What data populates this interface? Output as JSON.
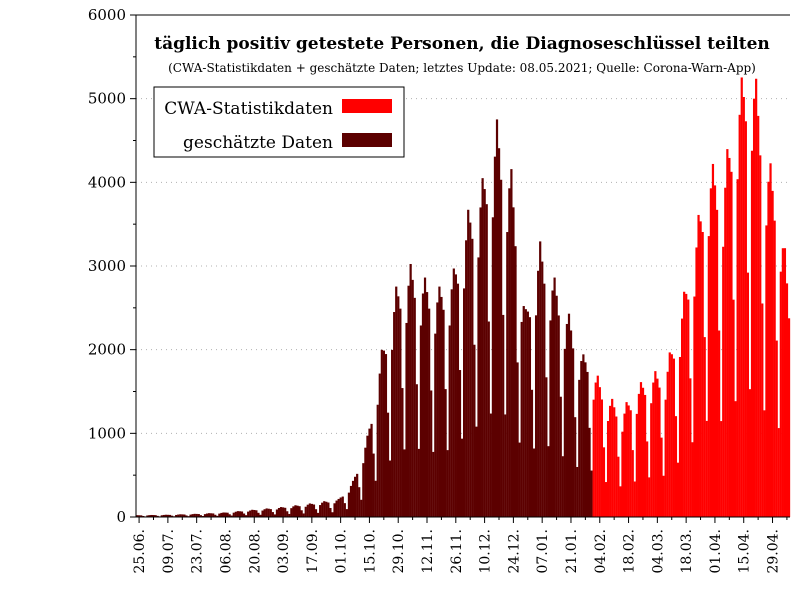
{
  "chart_data": {
    "type": "bar",
    "title": "täglich positiv getestete Personen, die Diagnoseschlüssel teilten",
    "subtitle": "(CWA-Statistikdaten + geschätzte Daten; letztes Update: 08.05.2021; Quelle: Corona-Warn-App)",
    "xlabel": "",
    "ylabel": "",
    "ylim": [
      0,
      6000
    ],
    "yticks": [
      0,
      1000,
      2000,
      3000,
      4000,
      5000,
      6000
    ],
    "ytick_labels": [
      "0",
      "1000",
      "2000",
      "3000",
      "4000",
      "5000",
      "6000"
    ],
    "x_start": "2020-06-24",
    "x_end": "2021-05-07",
    "xtick_labels": [
      "25.06.",
      "09.07.",
      "23.07.",
      "06.08.",
      "20.08.",
      "03.09.",
      "17.09.",
      "01.10.",
      "15.10.",
      "29.10.",
      "12.11.",
      "26.11.",
      "10.12.",
      "24.12.",
      "07.01.",
      "21.01.",
      "04.02.",
      "18.02.",
      "04.03.",
      "18.03.",
      "01.04.",
      "15.04.",
      "29.04."
    ],
    "grid": "horizontal dotted",
    "legend_position": "top-left",
    "series": [
      {
        "name": "geschätzte Daten",
        "color": "#5c0000",
        "points": [
          [
            "2020-06-24",
            20
          ],
          [
            "2020-07-08",
            25
          ],
          [
            "2020-07-22",
            35
          ],
          [
            "2020-08-05",
            50
          ],
          [
            "2020-08-19",
            80
          ],
          [
            "2020-09-02",
            110
          ],
          [
            "2020-09-16",
            150
          ],
          [
            "2020-09-30",
            200
          ],
          [
            "2020-10-07",
            400
          ],
          [
            "2020-10-14",
            900
          ],
          [
            "2020-10-21",
            1850
          ],
          [
            "2020-10-28",
            2550
          ],
          [
            "2020-11-04",
            2800
          ],
          [
            "2020-11-11",
            2650
          ],
          [
            "2020-11-18",
            2550
          ],
          [
            "2020-11-25",
            2750
          ],
          [
            "2020-12-02",
            3400
          ],
          [
            "2020-12-09",
            3750
          ],
          [
            "2020-12-16",
            4400
          ],
          [
            "2020-12-23",
            3850
          ],
          [
            "2020-12-30",
            2300
          ],
          [
            "2021-01-06",
            3050
          ],
          [
            "2021-01-13",
            2650
          ],
          [
            "2021-01-20",
            2250
          ],
          [
            "2021-01-27",
            1800
          ],
          [
            "2021-01-31",
            1850
          ]
        ]
      },
      {
        "name": "CWA-Statistikdaten",
        "color": "#ff0000",
        "points": [
          [
            "2021-02-01",
            1650
          ],
          [
            "2021-02-08",
            1350
          ],
          [
            "2021-02-15",
            1200
          ],
          [
            "2021-02-22",
            1450
          ],
          [
            "2021-03-01",
            1600
          ],
          [
            "2021-03-08",
            1650
          ],
          [
            "2021-03-15",
            2250
          ],
          [
            "2021-03-22",
            3100
          ],
          [
            "2021-03-29",
            3950
          ],
          [
            "2021-04-05",
            3800
          ],
          [
            "2021-04-12",
            4750
          ],
          [
            "2021-04-19",
            5150
          ],
          [
            "2021-04-26",
            4100
          ],
          [
            "2021-05-03",
            3450
          ],
          [
            "2021-05-07",
            2500
          ]
        ]
      }
    ]
  }
}
